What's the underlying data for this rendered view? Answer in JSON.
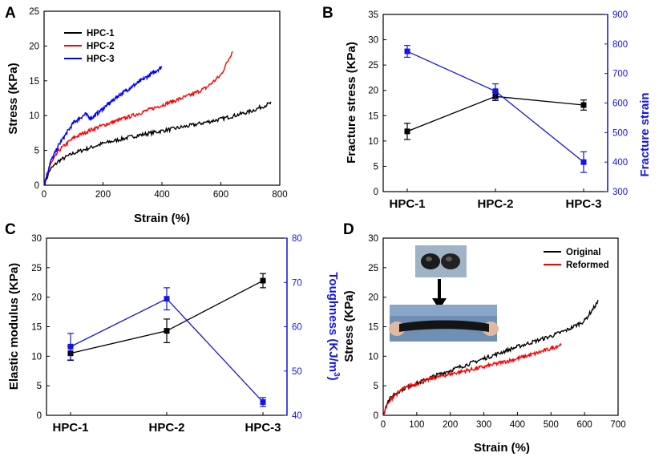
{
  "chart_data": [
    {
      "panel": "A",
      "type": "line",
      "xlabel": "Strain (%)",
      "ylabel": "Stress (KPa)",
      "xlim": [
        0,
        800
      ],
      "ylim": [
        0,
        25
      ],
      "xticks": [
        "0",
        "200",
        "400",
        "600",
        "800"
      ],
      "yticks": [
        "0",
        "5",
        "10",
        "15",
        "20",
        "25"
      ],
      "legend_position": "top-left",
      "series": [
        {
          "name": "HPC-1",
          "color": "#000000",
          "x": [
            0,
            20,
            50,
            100,
            150,
            200,
            300,
            400,
            500,
            600,
            700,
            770
          ],
          "y": [
            0,
            2.2,
            3.5,
            4.6,
            5.3,
            6.0,
            7.0,
            7.8,
            8.6,
            9.5,
            10.6,
            11.8
          ]
        },
        {
          "name": "HPC-2",
          "color": "#ff0000",
          "x": [
            0,
            20,
            50,
            100,
            150,
            200,
            300,
            400,
            500,
            550,
            600,
            640
          ],
          "y": [
            0,
            2.8,
            5.0,
            6.8,
            7.8,
            8.6,
            10.0,
            11.5,
            13.0,
            14.0,
            15.8,
            19.3
          ]
        },
        {
          "name": "HPC-3",
          "color": "#0000ff",
          "x": [
            0,
            20,
            50,
            100,
            140,
            160,
            200,
            250,
            300,
            350,
            400
          ],
          "y": [
            0,
            3.2,
            5.8,
            9.0,
            10.2,
            9.6,
            11.0,
            12.8,
            14.2,
            15.6,
            17.0
          ]
        }
      ]
    },
    {
      "panel": "B",
      "type": "line",
      "categories": [
        "HPC-1",
        "HPC-2",
        "HPC-3"
      ],
      "ylabel": "Fracture stress (KPa)",
      "ylim": [
        0,
        35
      ],
      "yticks": [
        "0",
        "5",
        "10",
        "15",
        "20",
        "25",
        "30",
        "35"
      ],
      "y2label": "Fracture strain",
      "y2lim": [
        300,
        900
      ],
      "y2ticks": [
        "300",
        "400",
        "500",
        "600",
        "700",
        "800",
        "900"
      ],
      "series": [
        {
          "name": "Fracture stress",
          "axis": "left",
          "color": "#000000",
          "values": [
            11.9,
            18.8,
            17.1
          ],
          "errors": [
            1.6,
            0.8,
            1.0
          ]
        },
        {
          "name": "Fracture strain",
          "axis": "right",
          "color": "#1414e6",
          "values": [
            775,
            640,
            400
          ],
          "errors": [
            20,
            25,
            35
          ]
        }
      ]
    },
    {
      "panel": "C",
      "type": "line",
      "categories": [
        "HPC-1",
        "HPC-2",
        "HPC-3"
      ],
      "ylabel": "Elastic modulus (KPa)",
      "ylim": [
        0,
        30
      ],
      "yticks": [
        "0",
        "5",
        "10",
        "15",
        "20",
        "25",
        "30"
      ],
      "y2label_main": "Toughness (KJ/m",
      "y2label_sup": "3",
      "y2label_close": ")",
      "y2lim": [
        40,
        80
      ],
      "y2ticks": [
        "40",
        "50",
        "60",
        "70",
        "80"
      ],
      "series": [
        {
          "name": "Elastic modulus",
          "axis": "left",
          "color": "#000000",
          "values": [
            10.5,
            14.3,
            22.8
          ],
          "errors": [
            1.2,
            2.0,
            1.2
          ]
        },
        {
          "name": "Toughness",
          "axis": "right",
          "color": "#1414e6",
          "values": [
            55.5,
            66.3,
            43
          ],
          "errors": [
            3,
            2.5,
            1
          ]
        }
      ]
    },
    {
      "panel": "D",
      "type": "line",
      "xlabel": "Strain (%)",
      "ylabel": "Stress (KPa)",
      "xlim": [
        0,
        700
      ],
      "ylim": [
        0,
        30
      ],
      "xticks": [
        "0",
        "100",
        "200",
        "300",
        "400",
        "500",
        "600",
        "700"
      ],
      "yticks": [
        "0",
        "5",
        "10",
        "15",
        "20",
        "25",
        "30"
      ],
      "legend_position": "top-right",
      "series": [
        {
          "name": "Original",
          "color": "#000000",
          "x": [
            0,
            10,
            30,
            60,
            100,
            150,
            200,
            300,
            400,
            500,
            550,
            600,
            640
          ],
          "y": [
            0,
            2.0,
            3.5,
            4.5,
            5.4,
            6.6,
            7.6,
            9.6,
            11.6,
            13.4,
            14.5,
            16.0,
            19.2
          ]
        },
        {
          "name": "Reformed",
          "color": "#ff0000",
          "x": [
            0,
            10,
            30,
            60,
            100,
            150,
            200,
            300,
            400,
            450,
            500,
            530
          ],
          "y": [
            0,
            1.5,
            3.2,
            4.5,
            5.4,
            6.3,
            7.0,
            8.2,
            9.6,
            10.4,
            11.3,
            12.0
          ]
        }
      ]
    }
  ]
}
